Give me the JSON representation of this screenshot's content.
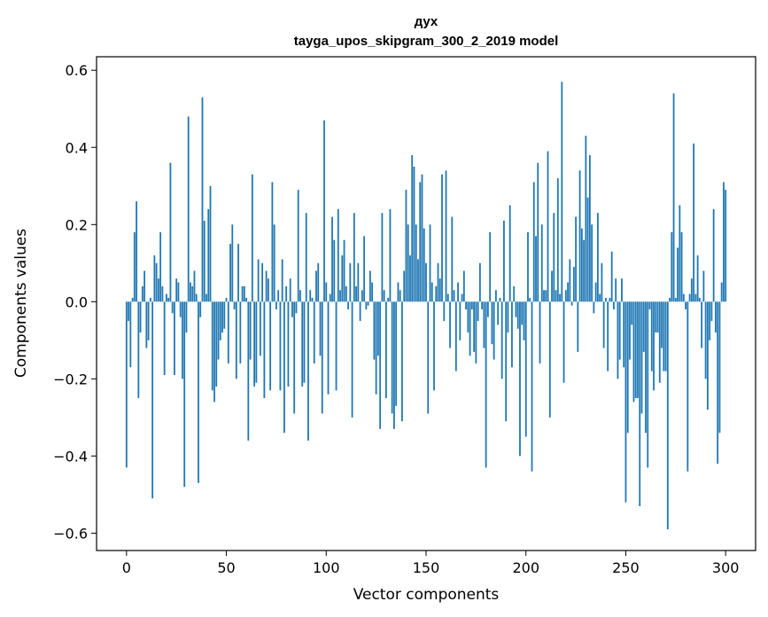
{
  "chart_data": {
    "type": "bar",
    "title": "дух",
    "subtitle": "tayga_upos_skipgram_300_2_2019 model",
    "xlabel": "Vector components",
    "ylabel": "Components values",
    "xlim": [
      -15,
      315
    ],
    "ylim": [
      -0.645,
      0.635
    ],
    "xticks": [
      0,
      50,
      100,
      150,
      200,
      250,
      300
    ],
    "xtick_labels": [
      "0",
      "50",
      "100",
      "150",
      "200",
      "250",
      "300"
    ],
    "yticks": [
      -0.6,
      -0.4,
      -0.2,
      0.0,
      0.2,
      0.4,
      0.6
    ],
    "ytick_labels": [
      "−0.6",
      "−0.4",
      "−0.2",
      "0.0",
      "0.2",
      "0.4",
      "0.6"
    ],
    "bar_color": "#1f77b4",
    "values": [
      -0.43,
      -0.05,
      -0.17,
      0.01,
      0.18,
      0.26,
      -0.25,
      -0.08,
      0.04,
      0.08,
      -0.12,
      -0.1,
      0.01,
      -0.51,
      0.12,
      0.1,
      0.06,
      0.18,
      0.04,
      -0.19,
      0.02,
      0.01,
      0.36,
      -0.03,
      -0.19,
      0.06,
      0.05,
      -0.04,
      -0.2,
      -0.48,
      -0.08,
      0.48,
      0.05,
      0.04,
      0.08,
      0.02,
      -0.47,
      -0.04,
      0.53,
      0.21,
      0.02,
      0.24,
      0.3,
      -0.23,
      -0.26,
      -0.22,
      -0.15,
      -0.1,
      -0.08,
      -0.07,
      0.01,
      -0.16,
      0.15,
      0.2,
      -0.02,
      -0.2,
      0.15,
      -0.16,
      0.04,
      0.04,
      0.01,
      -0.36,
      -0.15,
      0.33,
      -0.22,
      -0.21,
      0.11,
      -0.14,
      0.1,
      -0.25,
      0.08,
      0.06,
      -0.23,
      0.31,
      0.2,
      -0.02,
      0.03,
      -0.23,
      0.11,
      -0.34,
      0.04,
      -0.22,
      0.06,
      -0.04,
      -0.29,
      -0.03,
      0.29,
      0.03,
      -0.22,
      -0.21,
      0.23,
      -0.36,
      0.03,
      0.01,
      -0.16,
      0.08,
      0.1,
      -0.14,
      -0.29,
      0.47,
      0.05,
      -0.24,
      0.02,
      0.22,
      0.16,
      -0.23,
      0.24,
      0.03,
      0.12,
      0.16,
      0.04,
      -0.02,
      0.1,
      -0.3,
      0.23,
      0.04,
      0.1,
      -0.05,
      0.03,
      0.17,
      -0.02,
      -0.01,
      0.08,
      0.05,
      -0.15,
      -0.24,
      -0.14,
      -0.33,
      0.23,
      0.03,
      -0.25,
      0.01,
      0.24,
      -0.29,
      -0.33,
      -0.27,
      0.05,
      0.03,
      -0.31,
      0.08,
      0.29,
      0.2,
      0.12,
      0.38,
      0.35,
      0.2,
      0.11,
      0.31,
      0.33,
      0.19,
      0.1,
      -0.29,
      0.2,
      0.05,
      -0.23,
      0.04,
      0.1,
      0.06,
      0.33,
      -0.05,
      0.34,
      0.02,
      -0.12,
      0.22,
      0.03,
      -0.18,
      0.05,
      -0.1,
      0.02,
      0.08,
      -0.02,
      -0.08,
      -0.14,
      -0.02,
      -0.13,
      -0.16,
      -0.05,
      0.1,
      -0.02,
      -0.12,
      -0.43,
      -0.04,
      0.18,
      -0.11,
      -0.15,
      0.03,
      -0.06,
      0.01,
      -0.2,
      0.21,
      -0.31,
      -0.08,
      0.25,
      -0.17,
      0.04,
      -0.04,
      -0.07,
      -0.4,
      -0.06,
      -0.1,
      -0.35,
      0.18,
      0.01,
      -0.44,
      0.31,
      0.17,
      0.36,
      -0.16,
      0.2,
      0.03,
      0.03,
      0.39,
      -0.3,
      0.08,
      0.23,
      0.03,
      0.32,
      0.02,
      0.57,
      -0.21,
      0.03,
      0.05,
      0.11,
      -0.01,
      0.09,
      0.22,
      -0.13,
      0.34,
      0.19,
      0.16,
      0.43,
      0.27,
      0.38,
      0.2,
      -0.03,
      0.05,
      0.23,
      0.02,
      0.1,
      -0.12,
      0.01,
      -0.18,
      0.01,
      0.13,
      -0.02,
      0.06,
      -0.2,
      -0.15,
      0.06,
      -0.17,
      -0.52,
      -0.34,
      -0.15,
      -0.06,
      -0.26,
      -0.25,
      -0.25,
      -0.53,
      -0.29,
      -0.13,
      -0.34,
      -0.43,
      -0.02,
      -0.18,
      -0.23,
      -0.08,
      -0.08,
      -0.21,
      -0.12,
      -0.18,
      -0.18,
      -0.59,
      0.01,
      0.18,
      0.54,
      0.01,
      0.14,
      0.25,
      0.18,
      0.02,
      -0.02,
      -0.44,
      0.02,
      0.06,
      0.41,
      0.02,
      0.12,
      0.01,
      -0.12,
      0.08,
      -0.2,
      -0.28,
      -0.1,
      -0.05,
      0.24,
      -0.08,
      -0.42,
      -0.34,
      0.05,
      0.31,
      0.29
    ]
  }
}
